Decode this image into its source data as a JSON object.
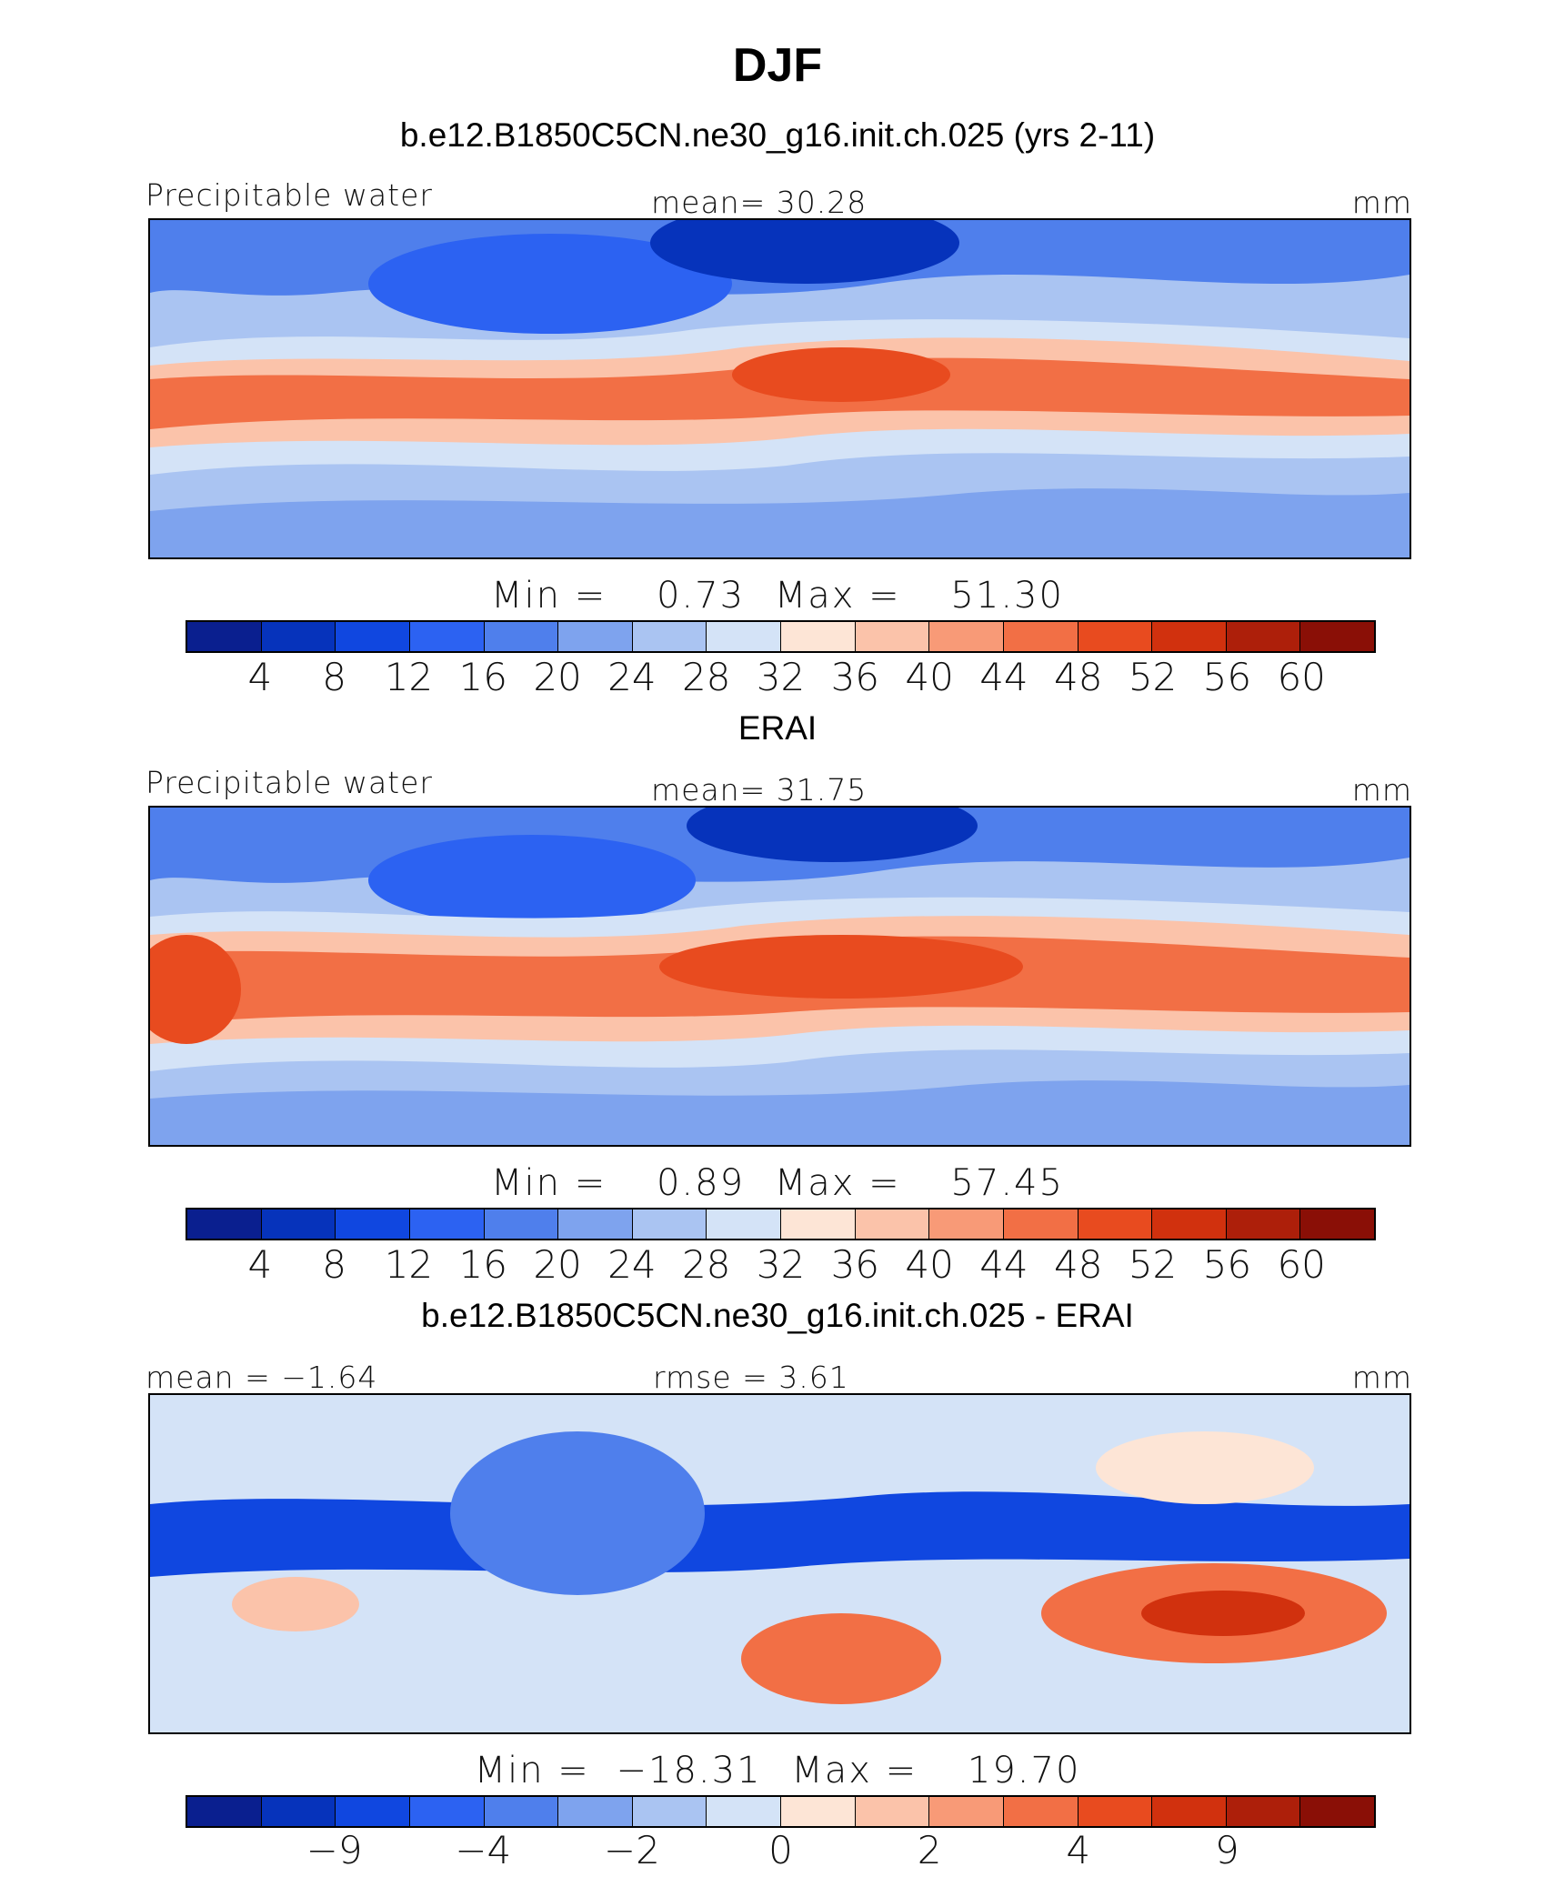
{
  "figure_title": "DJF",
  "palette": [
    "#0a1f8f",
    "#0633bb",
    "#1047e0",
    "#2c62f2",
    "#4f7fec",
    "#7ea3ee",
    "#aac4f2",
    "#d4e3f7",
    "#fde5d6",
    "#fbc3aa",
    "#f89a77",
    "#f26f45",
    "#e84b1f",
    "#d1310e",
    "#ad1f0a",
    "#8a0f06"
  ],
  "chart_data": [
    {
      "type": "heatmap",
      "panel_title": "b.e12.B1850C5CN.ne30_g16.init.ch.025 (yrs 2-11)",
      "left_label": "Precipitable water",
      "center_label": "mean=   30.28",
      "units": "mm",
      "min_label": "Min =",
      "min_value": "0.73",
      "max_label": "Max =",
      "max_value": "51.30",
      "mean": 30.28,
      "min": 0.73,
      "max": 51.3,
      "colorbar_levels": [
        "4",
        "8",
        "12",
        "16",
        "20",
        "24",
        "28",
        "32",
        "36",
        "40",
        "44",
        "48",
        "52",
        "56",
        "60"
      ]
    },
    {
      "type": "heatmap",
      "panel_title": "ERAI",
      "left_label": "Precipitable water",
      "center_label": "mean=   31.75",
      "units": "mm",
      "min_label": "Min =",
      "min_value": "0.89",
      "max_label": "Max =",
      "max_value": "57.45",
      "mean": 31.75,
      "min": 0.89,
      "max": 57.45,
      "colorbar_levels": [
        "4",
        "8",
        "12",
        "16",
        "20",
        "24",
        "28",
        "32",
        "36",
        "40",
        "44",
        "48",
        "52",
        "56",
        "60"
      ]
    },
    {
      "type": "heatmap",
      "panel_title": "b.e12.B1850C5CN.ne30_g16.init.ch.025 - ERAI",
      "left_label": "mean =   −1.64",
      "center_label": "rmse =     3.61",
      "units": "mm",
      "min_label": "Min =",
      "min_value": "−18.31",
      "max_label": "Max =",
      "max_value": "19.70",
      "mean": -1.64,
      "rmse": 3.61,
      "min": -18.31,
      "max": 19.7,
      "colorbar_levels": [
        "−9",
        "−4",
        "−2",
        "0",
        "2",
        "4",
        "9"
      ],
      "colorbar_level_boundaries": [
        2,
        4,
        6,
        8,
        10,
        12,
        14
      ]
    }
  ]
}
